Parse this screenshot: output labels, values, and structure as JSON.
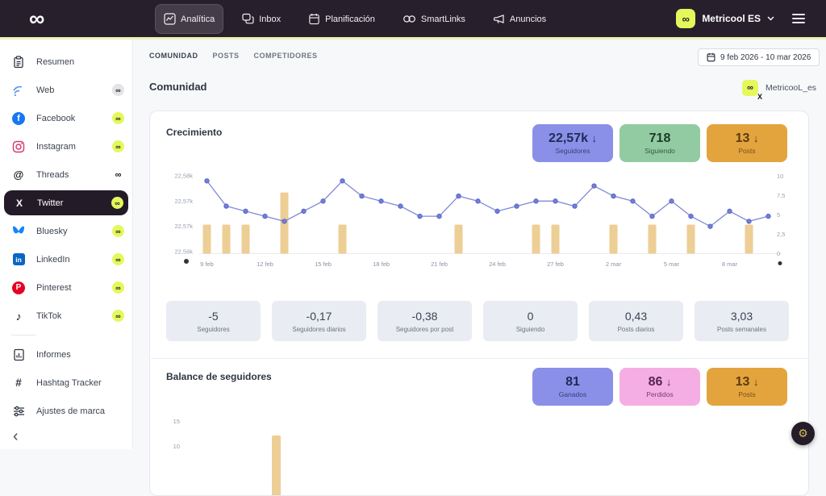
{
  "navbar": {
    "brand_icon": "infinity",
    "items": [
      {
        "label": "Analítica",
        "icon": "analytics-icon",
        "active": true
      },
      {
        "label": "Inbox",
        "icon": "inbox-icon",
        "active": false
      },
      {
        "label": "Planificación",
        "icon": "planner-icon",
        "active": false
      },
      {
        "label": "SmartLinks",
        "icon": "smartlinks-icon",
        "active": false
      },
      {
        "label": "Anuncios",
        "icon": "megaphone-icon",
        "active": false
      }
    ],
    "account": {
      "name": "Metricool ES"
    }
  },
  "sidebar": {
    "items": [
      {
        "label": "Resumen",
        "icon": "summary-icon",
        "badge": "none"
      },
      {
        "label": "Web",
        "icon": "web-icon",
        "badge": "gray"
      },
      {
        "label": "Facebook",
        "icon": "facebook-icon",
        "badge": "yellow"
      },
      {
        "label": "Instagram",
        "icon": "instagram-icon",
        "badge": "yellow"
      },
      {
        "label": "Threads",
        "icon": "threads-icon",
        "badge": "plain"
      },
      {
        "label": "Twitter",
        "icon": "twitter-icon",
        "badge": "yellow",
        "selected": true
      },
      {
        "label": "Bluesky",
        "icon": "bluesky-icon",
        "badge": "yellow"
      },
      {
        "label": "LinkedIn",
        "icon": "linkedin-icon",
        "badge": "yellow"
      },
      {
        "label": "Pinterest",
        "icon": "pinterest-icon",
        "badge": "yellow"
      },
      {
        "label": "TikTok",
        "icon": "tiktok-icon",
        "badge": "yellow"
      },
      {
        "divider": true
      },
      {
        "label": "Informes",
        "icon": "reports-icon",
        "badge": "none"
      },
      {
        "label": "Hashtag Tracker",
        "icon": "hashtag-icon",
        "badge": "none"
      },
      {
        "label": "Ajustes de marca",
        "icon": "brand-settings-icon",
        "badge": "none"
      }
    ]
  },
  "header": {
    "tabs": [
      {
        "label": "COMUNIDAD",
        "active": true
      },
      {
        "label": "POSTS",
        "active": false
      },
      {
        "label": "COMPETIDORES",
        "active": false
      }
    ],
    "date_range": "9 feb 2026 - 10 mar 2026",
    "section_title": "Comunidad",
    "account_chip": "MetricooL_es"
  },
  "growth": {
    "title": "Crecimiento",
    "kpis": [
      {
        "value": "22,57k",
        "arrow": "↓",
        "label": "Seguidores",
        "style": "purple"
      },
      {
        "value": "718",
        "arrow": "",
        "label": "Siguiendo",
        "style": "green"
      },
      {
        "value": "13",
        "arrow": "↓",
        "label": "Posts",
        "style": "orange"
      }
    ],
    "stats": [
      {
        "value": "-5",
        "label": "Seguidores"
      },
      {
        "value": "-0,17",
        "label": "Seguidores diarios"
      },
      {
        "value": "-0,38",
        "label": "Seguidores por post"
      },
      {
        "value": "0",
        "label": "Siguiendo"
      },
      {
        "value": "0,43",
        "label": "Posts diarios"
      },
      {
        "value": "3,03",
        "label": "Posts semanales"
      }
    ]
  },
  "balance": {
    "title": "Balance de seguidores",
    "kpis": [
      {
        "value": "81",
        "arrow": "",
        "label": "Ganados",
        "style": "purple"
      },
      {
        "value": "86",
        "arrow": "↓",
        "label": "Perdidos",
        "style": "pink"
      },
      {
        "value": "13",
        "arrow": "↓",
        "label": "Posts",
        "style": "orange"
      }
    ]
  },
  "chart_data": [
    {
      "id": "growth-chart",
      "type": "line+bar",
      "title": "Crecimiento",
      "days": 30,
      "x_labels": [
        "9 feb",
        "12 feb",
        "15 feb",
        "18 feb",
        "21 feb",
        "24 feb",
        "27 feb",
        "2 mar",
        "5 mar",
        "8 mar"
      ],
      "x_label_day_index": [
        0,
        3,
        6,
        9,
        12,
        15,
        18,
        21,
        24,
        27
      ],
      "series": [
        {
          "name": "Seguidores",
          "type": "line",
          "axis": "left",
          "values": [
            22579,
            22574,
            22573,
            22572,
            22571,
            22573,
            22575,
            22579,
            22576,
            22575,
            22574,
            22572,
            22572,
            22576,
            22575,
            22573,
            22574,
            22575,
            22575,
            22574,
            22578,
            22576,
            22575,
            22572,
            22575,
            22572,
            22570,
            22573,
            22571,
            22572
          ]
        },
        {
          "name": "Posts",
          "type": "bar",
          "axis": "right",
          "values": [
            3.75,
            3.75,
            3.75,
            0,
            7.9,
            0,
            0,
            3.75,
            0,
            0,
            0,
            0,
            0,
            3.75,
            0,
            0,
            0,
            3.75,
            3.75,
            0,
            0,
            3.75,
            0,
            3.75,
            0,
            3.75,
            0,
            0,
            3.75,
            0
          ]
        }
      ],
      "left_axis": {
        "ticks": [
          "22,58k",
          "22,57k",
          "22,57k",
          "22,56k"
        ],
        "tick_values": [
          22580,
          22575,
          22570,
          22565
        ],
        "min": 22565,
        "max": 22580
      },
      "right_axis": {
        "ticks": [
          "10",
          "7,5",
          "5",
          "2,5",
          "0"
        ],
        "tick_values": [
          10,
          7.5,
          5,
          2.5,
          0
        ],
        "min": 0,
        "max": 10
      },
      "grid": false,
      "legend": "none"
    },
    {
      "id": "balance-chart",
      "type": "bar",
      "title": "Balance de seguidores",
      "note": "parcialmente visible (recortado)",
      "visible_ticks": [
        "15",
        "10"
      ],
      "visible_bars": [
        {
          "x_day_index": 3.6,
          "value": 11.5
        }
      ]
    }
  ],
  "colors": {
    "accent_lime": "#e4f85b",
    "navbar_bg": "#281f2d",
    "kpi_purple": "#8a90e8",
    "kpi_green": "#92cba1",
    "kpi_orange": "#e4a43d",
    "kpi_pink": "#f5aee3",
    "chart_bar": "#edce95",
    "chart_line": "#7f89d8",
    "chart_point": "#727ed6",
    "stat_box": "#e9ecf2"
  },
  "fab": {
    "icon": "gear-icon"
  }
}
